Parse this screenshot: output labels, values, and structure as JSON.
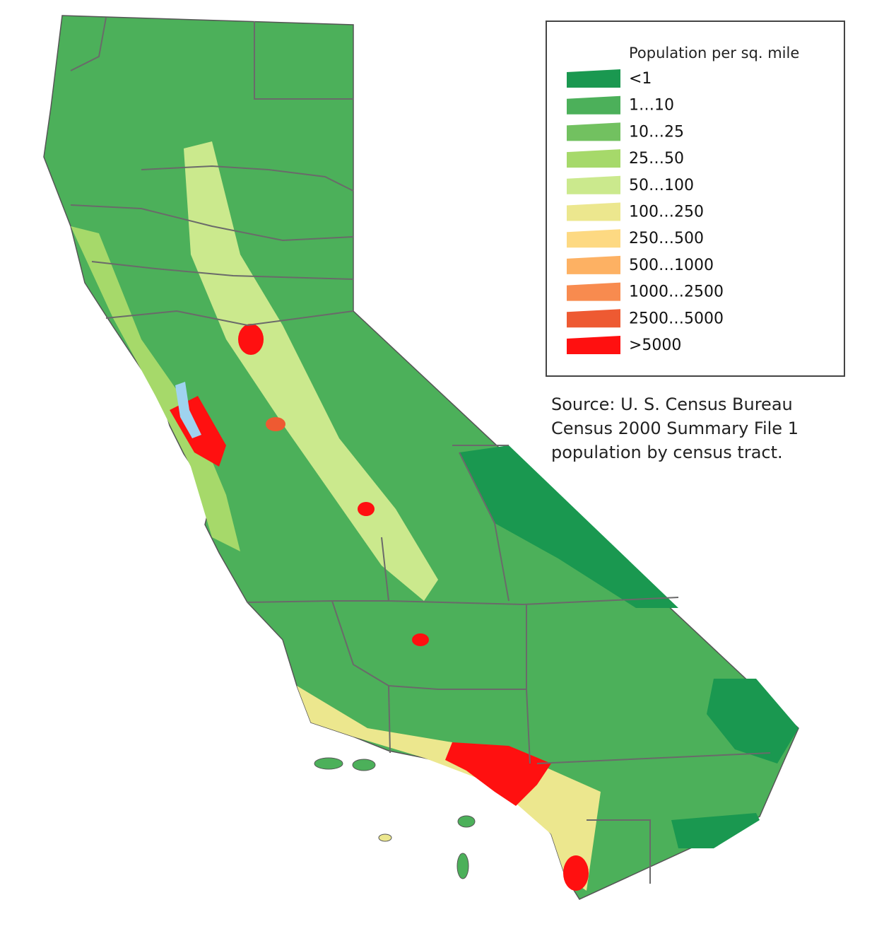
{
  "legend": {
    "title": "Population per sq. mile",
    "items": [
      {
        "label": "<1",
        "color": "#1a9850"
      },
      {
        "label": "1…10",
        "color": "#4cb05a"
      },
      {
        "label": "10…25",
        "color": "#72c160"
      },
      {
        "label": "25…50",
        "color": "#a6d96a"
      },
      {
        "label": "50…100",
        "color": "#cbe98d"
      },
      {
        "label": "100…250",
        "color": "#ece78e"
      },
      {
        "label": "250…500",
        "color": "#fdd982"
      },
      {
        "label": "500…1000",
        "color": "#fdb163"
      },
      {
        "label": "1000…2500",
        "color": "#f88b4f"
      },
      {
        "label": "2500…5000",
        "color": "#ee5a32"
      },
      {
        "label": ">5000",
        "color": "#ff1010"
      }
    ]
  },
  "source": [
    "Source: U. S. Census Bureau",
    "Census 2000 Summary File 1",
    "population by census tract."
  ]
}
